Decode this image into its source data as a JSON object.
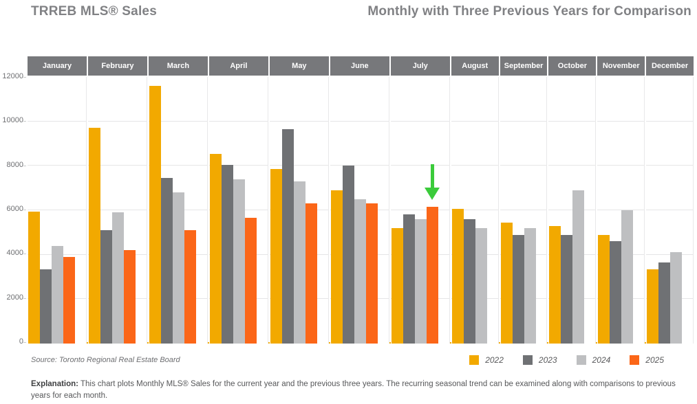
{
  "page": {
    "title_left": "TRREB MLS® Sales",
    "title_right": "Monthly with Three Previous Years for Comparison"
  },
  "chart_data": {
    "type": "bar",
    "title": "TRREB MLS® Sales — Monthly with Three Previous Years for Comparison",
    "categories": [
      "January",
      "February",
      "March",
      "April",
      "May",
      "June",
      "July",
      "August",
      "September",
      "October",
      "November",
      "December"
    ],
    "series": [
      {
        "name": "2022",
        "color": "#F2A900",
        "values": [
          5950,
          9700,
          11600,
          8550,
          7850,
          6900,
          5200,
          6050,
          5450,
          5300,
          4900,
          3350
        ]
      },
      {
        "name": "2023",
        "color": "#6F7174",
        "values": [
          3350,
          5100,
          7450,
          8050,
          9650,
          8000,
          5800,
          5600,
          4900,
          4900,
          4600,
          3650
        ]
      },
      {
        "name": "2024",
        "color": "#BEBFC1",
        "values": [
          4400,
          5900,
          6800,
          7400,
          7300,
          6500,
          5600,
          5200,
          5200,
          6900,
          6000,
          4100
        ]
      },
      {
        "name": "2025",
        "color": "#FB6618",
        "values": [
          3900,
          4200,
          5100,
          5650,
          6300,
          6300,
          6150,
          null,
          null,
          null,
          null,
          null
        ]
      }
    ],
    "xlabel": "",
    "ylabel": "",
    "ylim": [
      0,
      12000
    ],
    "yticks": [
      0,
      2000,
      4000,
      6000,
      8000,
      10000,
      12000
    ],
    "grid": "horizontal",
    "legend_position": "bottom-right",
    "annotation": {
      "type": "down-arrow",
      "color": "#3BCB3B",
      "target_month": "July",
      "target_series": "2025"
    }
  },
  "source": "Source: Toronto Regional Real Estate Board",
  "explanation": {
    "label": "Explanation:",
    "text": " This chart plots Monthly MLS® Sales for the current year and the previous three years. The recurring seasonal trend can be examined along with comparisons to previous years for each month."
  },
  "colors": {
    "title_text": "#808184",
    "month_header_band": "#77787B",
    "axis_text": "#6D6E71",
    "gridline": "#E5E5E6",
    "baseline": "#F2A900",
    "arrow_green": "#3BCB3B"
  }
}
